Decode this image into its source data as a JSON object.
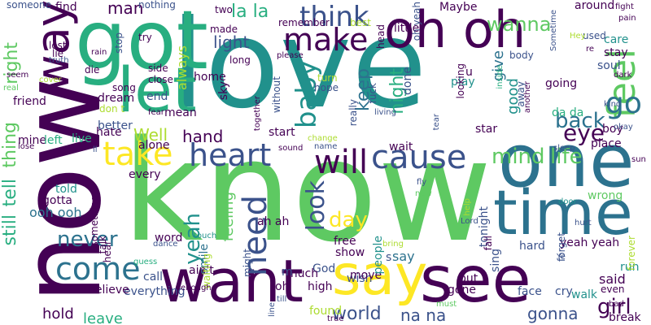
{
  "palette": {
    "dark_purple": "#440154",
    "indigo": "#3b528b",
    "blue": "#2c728e",
    "teal": "#21918c",
    "green_teal": "#28ae80",
    "green": "#5ec962",
    "lime": "#addc30",
    "yellow": "#fde725"
  },
  "words": [
    {
      "text": "love",
      "color": "teal"
    },
    {
      "text": "know",
      "color": "green"
    },
    {
      "text": "now",
      "color": "dark_purple"
    },
    {
      "text": "got",
      "color": "green_teal"
    },
    {
      "text": "oh oh",
      "color": "dark_purple"
    },
    {
      "text": "let",
      "color": "green_teal"
    },
    {
      "text": "one",
      "color": "blue"
    },
    {
      "text": "time",
      "color": "blue"
    },
    {
      "text": "say",
      "color": "yellow"
    },
    {
      "text": "see",
      "color": "dark_purple"
    },
    {
      "text": "want",
      "color": "dark_purple"
    },
    {
      "text": "way",
      "color": "dark_purple"
    },
    {
      "text": "make",
      "color": "dark_purple"
    },
    {
      "text": "take",
      "color": "yellow"
    },
    {
      "text": "heart",
      "color": "indigo"
    },
    {
      "text": "will",
      "color": "dark_purple"
    },
    {
      "text": "cause",
      "color": "indigo"
    },
    {
      "text": "feel",
      "color": "green"
    },
    {
      "text": "go",
      "color": "blue"
    },
    {
      "text": "think",
      "color": "indigo"
    },
    {
      "text": "need",
      "color": "indigo"
    },
    {
      "text": "come",
      "color": "blue"
    },
    {
      "text": "baby",
      "color": "teal"
    },
    {
      "text": "night",
      "color": "green_teal"
    },
    {
      "text": "la la",
      "color": "green_teal"
    },
    {
      "text": "wanna",
      "color": "green"
    },
    {
      "text": "man",
      "color": "dark_purple"
    },
    {
      "text": "keep",
      "color": "blue"
    },
    {
      "text": "back",
      "color": "blue"
    },
    {
      "text": "eye",
      "color": "dark_purple"
    },
    {
      "text": "mind",
      "color": "green"
    },
    {
      "text": "life",
      "color": "green"
    },
    {
      "text": "hand",
      "color": "dark_purple"
    },
    {
      "text": "still",
      "color": "green_teal"
    },
    {
      "text": "tell",
      "color": "green_teal"
    },
    {
      "text": "thing",
      "color": "green"
    },
    {
      "text": "never",
      "color": "blue"
    },
    {
      "text": "look",
      "color": "indigo"
    },
    {
      "text": "day",
      "color": "yellow"
    },
    {
      "text": "yeah",
      "color": "teal"
    },
    {
      "text": "girl",
      "color": "dark_purple"
    },
    {
      "text": "world",
      "color": "indigo"
    },
    {
      "text": "gonna",
      "color": "indigo"
    },
    {
      "text": "na na",
      "color": "indigo"
    },
    {
      "text": "right",
      "color": "green"
    },
    {
      "text": "light",
      "color": "indigo"
    },
    {
      "text": "always",
      "color": "lime"
    },
    {
      "text": "give",
      "color": "blue"
    },
    {
      "text": "good",
      "color": "teal"
    },
    {
      "text": "find",
      "color": "dark_purple"
    },
    {
      "text": "Well",
      "color": "lime"
    },
    {
      "text": "feeling",
      "color": "green"
    },
    {
      "text": "hold",
      "color": "dark_purple"
    },
    {
      "text": "leave",
      "color": "green_teal"
    },
    {
      "text": "ooh ooh",
      "color": "blue"
    },
    {
      "text": "say",
      "color": "blue"
    },
    {
      "text": "said",
      "color": "dark_purple"
    },
    {
      "text": "play",
      "color": "teal"
    },
    {
      "text": "wish",
      "color": "indigo"
    },
    {
      "text": "free",
      "color": "dark_purple"
    },
    {
      "text": "show",
      "color": "dark_purple"
    },
    {
      "text": "done",
      "color": "indigo"
    },
    {
      "text": "Maybe",
      "color": "dark_purple"
    },
    {
      "text": "little",
      "color": "dark_purple"
    },
    {
      "text": "around",
      "color": "dark_purple"
    },
    {
      "text": "care",
      "color": "teal"
    },
    {
      "text": "stay",
      "color": "dark_purple"
    },
    {
      "text": "soul",
      "color": "indigo"
    },
    {
      "text": "going",
      "color": "dark_purple"
    },
    {
      "text": "boy",
      "color": "dark_purple"
    },
    {
      "text": "place",
      "color": "dark_purple"
    },
    {
      "text": "wrong",
      "color": "green"
    },
    {
      "text": "run",
      "color": "teal"
    },
    {
      "text": "walk",
      "color": "teal"
    },
    {
      "text": "break",
      "color": "dark_purple"
    },
    {
      "text": "cry",
      "color": "indigo"
    },
    {
      "text": "face",
      "color": "indigo"
    },
    {
      "text": "hard",
      "color": "indigo"
    },
    {
      "text": "put",
      "color": "dark_purple"
    },
    {
      "text": "gone",
      "color": "dark_purple"
    },
    {
      "text": "move",
      "color": "dark_purple"
    },
    {
      "text": "high",
      "color": "dark_purple"
    },
    {
      "text": "found",
      "color": "lime"
    },
    {
      "text": "oh",
      "color": "dark_purple"
    },
    {
      "text": "God",
      "color": "indigo"
    },
    {
      "text": "much",
      "color": "dark_purple"
    },
    {
      "text": "call",
      "color": "indigo"
    },
    {
      "text": "everything",
      "color": "indigo"
    },
    {
      "text": "believe",
      "color": "dark_purple"
    },
    {
      "text": "ain't",
      "color": "dark_purple"
    },
    {
      "text": "word",
      "color": "dark_purple"
    },
    {
      "text": "smile",
      "color": "blue"
    },
    {
      "text": "every",
      "color": "dark_purple"
    },
    {
      "text": "alone",
      "color": "dark_purple"
    },
    {
      "text": "hate",
      "color": "dark_purple"
    },
    {
      "text": "mine",
      "color": "dark_purple"
    },
    {
      "text": "gotta",
      "color": "dark_purple"
    },
    {
      "text": "told",
      "color": "teal"
    },
    {
      "text": "live",
      "color": "green_teal"
    },
    {
      "text": "left",
      "color": "green_teal"
    },
    {
      "text": "better",
      "color": "indigo"
    },
    {
      "text": "friend",
      "color": "dark_purple"
    },
    {
      "text": "dream",
      "color": "dark_purple"
    },
    {
      "text": "end",
      "color": "indigo"
    },
    {
      "text": "mean",
      "color": "dark_purple"
    },
    {
      "text": "home",
      "color": "dark_purple"
    },
    {
      "text": "sky",
      "color": "dark_purple"
    },
    {
      "text": "start",
      "color": "dark_purple"
    },
    {
      "text": "wait",
      "color": "dark_purple"
    },
    {
      "text": "star",
      "color": "dark_purple"
    },
    {
      "text": "tonight",
      "color": "indigo"
    },
    {
      "text": "sing",
      "color": "indigo"
    },
    {
      "text": "people",
      "color": "teal"
    },
    {
      "text": "yeah yeah",
      "color": "dark_purple"
    },
    {
      "text": "da da",
      "color": "green_teal"
    },
    {
      "text": "ah ah",
      "color": "dark_purple"
    },
    {
      "text": "s",
      "color": "indigo"
    },
    {
      "text": "m",
      "color": "indigo"
    },
    {
      "text": "u",
      "color": "dark_purple"
    },
    {
      "text": "nothing",
      "color": "indigo"
    },
    {
      "text": "try",
      "color": "dark_purple"
    },
    {
      "text": "stop",
      "color": "indigo"
    },
    {
      "text": "made",
      "color": "dark_purple"
    },
    {
      "text": "long",
      "color": "dark_purple"
    },
    {
      "text": "song",
      "color": "dark_purple"
    },
    {
      "text": "die",
      "color": "dark_purple"
    },
    {
      "text": "close",
      "color": "dark_purple"
    },
    {
      "text": "side",
      "color": "dark_purple"
    },
    {
      "text": "lost",
      "color": "dark_purple"
    },
    {
      "text": "lie",
      "color": "dark_purple"
    },
    {
      "text": "someone",
      "color": "indigo"
    },
    {
      "text": "remember",
      "color": "dark_purple"
    },
    {
      "text": "best",
      "color": "lime"
    },
    {
      "text": "head",
      "color": "dark_purple"
    },
    {
      "text": "turn",
      "color": "lime"
    },
    {
      "text": "looking",
      "color": "dark_purple"
    },
    {
      "text": "body",
      "color": "indigo"
    },
    {
      "text": "used",
      "color": "indigo"
    },
    {
      "text": "fuck",
      "color": "indigo"
    },
    {
      "text": "really",
      "color": "indigo"
    },
    {
      "text": "without",
      "color": "indigo"
    },
    {
      "text": "hope",
      "color": "indigo"
    },
    {
      "text": "away",
      "color": "indigo"
    },
    {
      "text": "don t",
      "color": "lime"
    },
    {
      "text": "talk",
      "color": "dark_purple"
    },
    {
      "text": "something",
      "color": "dark_purple"
    },
    {
      "text": "hear",
      "color": "dark_purple"
    },
    {
      "text": "fall",
      "color": "dark_purple"
    },
    {
      "text": "waiting",
      "color": "lime"
    },
    {
      "text": "might",
      "color": "indigo"
    },
    {
      "text": "forget",
      "color": "indigo"
    },
    {
      "text": "even",
      "color": "dark_purple"
    },
    {
      "text": "forever",
      "color": "lime"
    },
    {
      "text": "two",
      "color": "dark_purple"
    },
    {
      "text": "oh yeah",
      "color": "indigo"
    },
    {
      "text": "please",
      "color": "dark_purple"
    },
    {
      "text": "rain",
      "color": "dark_purple"
    },
    {
      "text": "truth",
      "color": "indigo"
    },
    {
      "text": "seem",
      "color": "dark_purple"
    },
    {
      "text": "real",
      "color": "green"
    },
    {
      "text": "cover",
      "color": "lime"
    },
    {
      "text": "fear",
      "color": "dark_purple"
    },
    {
      "text": "together",
      "color": "dark_purple"
    },
    {
      "text": "living",
      "color": "indigo"
    },
    {
      "text": "tear",
      "color": "indigo"
    },
    {
      "text": "inside",
      "color": "green_teal"
    },
    {
      "text": "another",
      "color": "dark_purple"
    },
    {
      "text": "dark",
      "color": "dark_purple"
    },
    {
      "text": "kind",
      "color": "indigo"
    },
    {
      "text": "okay",
      "color": "indigo"
    },
    {
      "text": "sleep",
      "color": "indigo"
    },
    {
      "text": "sun",
      "color": "dark_purple"
    },
    {
      "text": "door",
      "color": "teal"
    },
    {
      "text": "fly",
      "color": "indigo"
    },
    {
      "text": "new",
      "color": "green"
    },
    {
      "text": "hurt",
      "color": "indigo"
    },
    {
      "text": "Lord",
      "color": "indigo"
    },
    {
      "text": "bring",
      "color": "lime"
    },
    {
      "text": "must",
      "color": "green"
    },
    {
      "text": "true",
      "color": "dark_purple"
    },
    {
      "text": "line",
      "color": "indigo"
    },
    {
      "text": "guess",
      "color": "green_teal"
    },
    {
      "text": "enough",
      "color": "dark_purple"
    },
    {
      "text": "touch",
      "color": "teal"
    },
    {
      "text": "dance",
      "color": "indigo"
    },
    {
      "text": "change",
      "color": "lime"
    },
    {
      "text": "sound",
      "color": "dark_purple"
    },
    {
      "text": "name",
      "color": "indigo"
    },
    {
      "text": "help",
      "color": "lime"
    },
    {
      "text": "bad",
      "color": "dark_purple"
    },
    {
      "text": "Ye",
      "color": "indigo"
    },
    {
      "text": "Hey",
      "color": "lime"
    },
    {
      "text": "pain",
      "color": "dark_purple"
    },
    {
      "text": "fight",
      "color": "dark_purple"
    },
    {
      "text": "Sometime",
      "color": "indigo"
    },
    {
      "text": "lose",
      "color": "dark_purple"
    },
    {
      "text": "ll",
      "color": "indigo"
    },
    {
      "text": "re",
      "color": "dark_purple"
    },
    {
      "text": "till",
      "color": "indigo"
    }
  ]
}
